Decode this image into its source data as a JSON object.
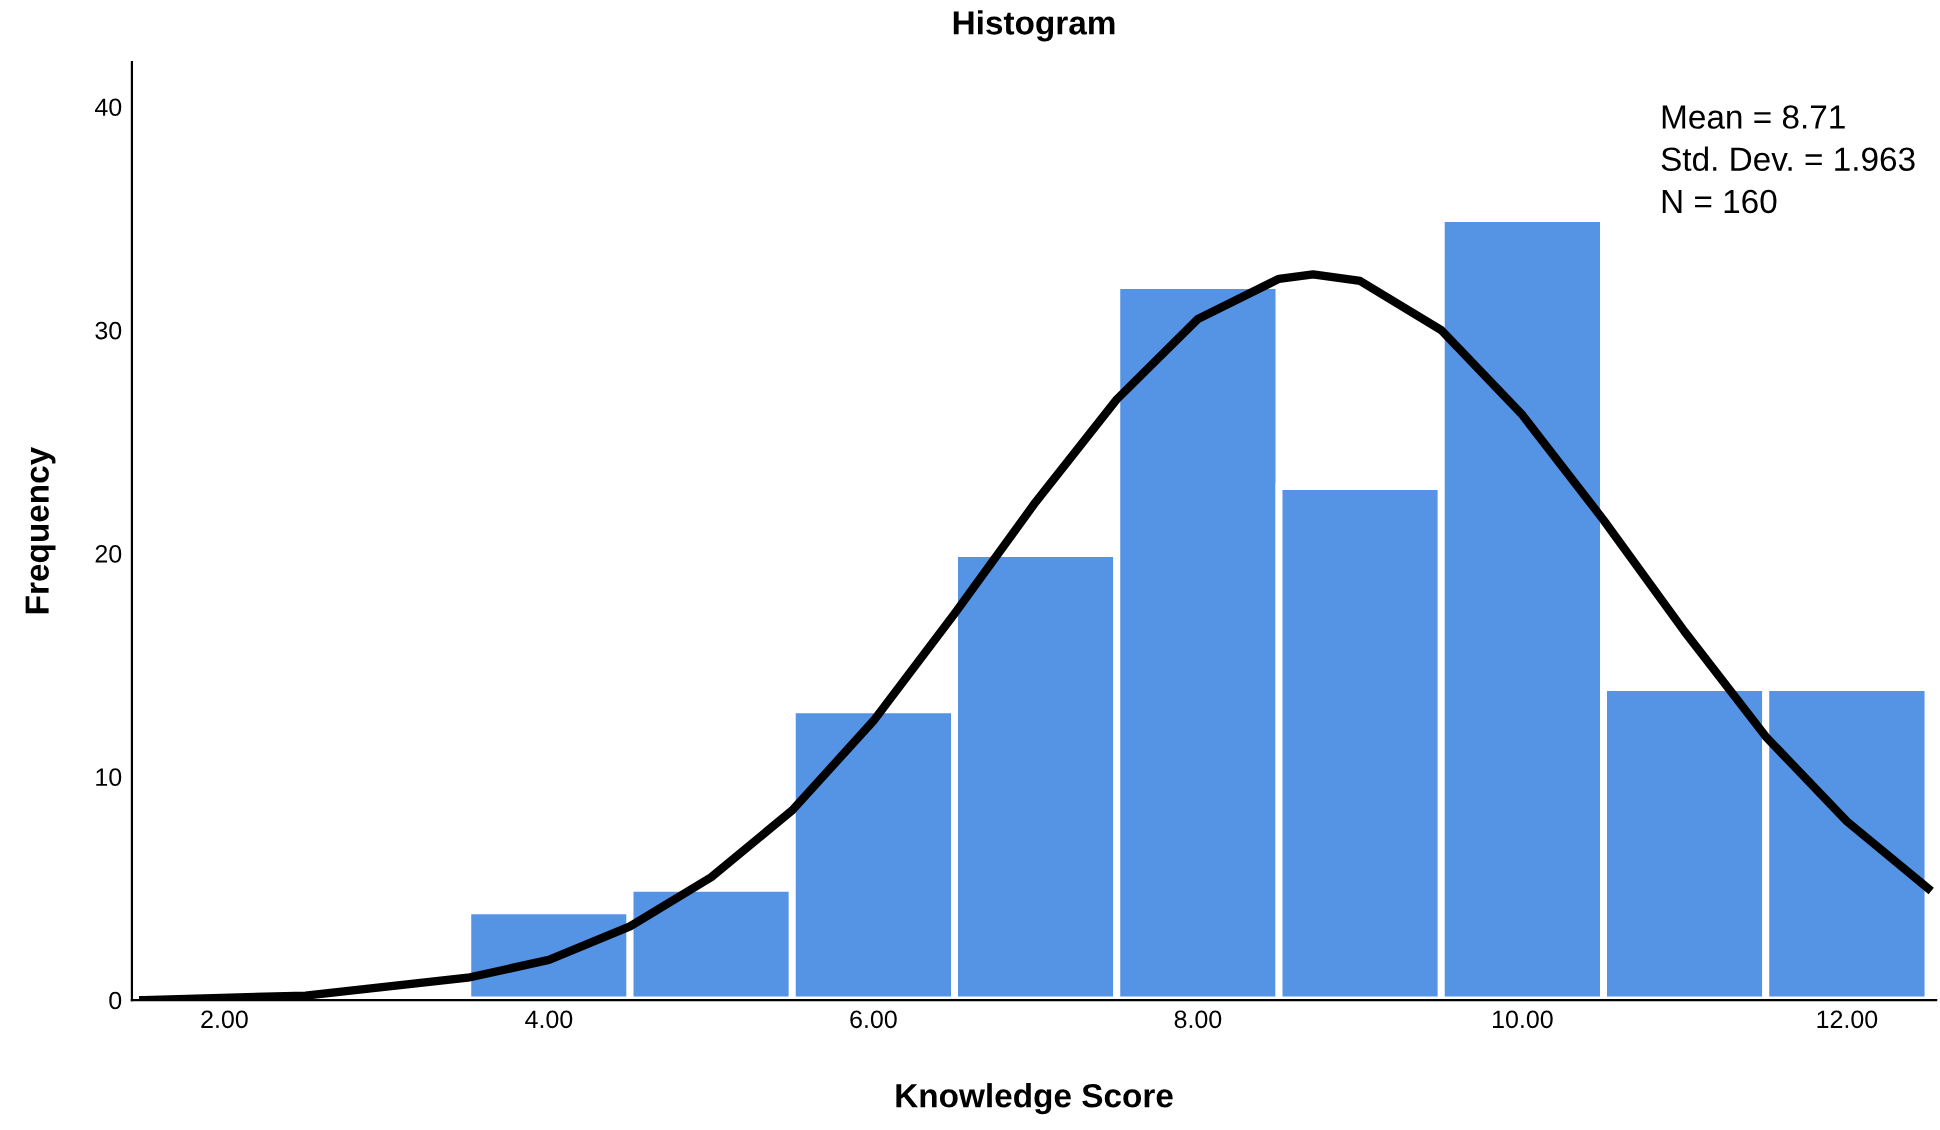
{
  "chart_data": {
    "type": "histogram",
    "title": "Histogram",
    "xlabel": "Knowledge Score",
    "ylabel": "Frequency",
    "bins": [
      3.5,
      4.5,
      5.5,
      6.5,
      7.5,
      8.5,
      9.5,
      10.5,
      11.5,
      12.5
    ],
    "values": [
      4,
      5,
      13,
      20,
      32,
      23,
      35,
      14,
      14
    ],
    "color": "#5594e4",
    "series": [
      {
        "type": "line",
        "color": "#000000",
        "x": [
          1.5,
          2.5,
          3.5,
          4,
          4.5,
          5,
          5.5,
          6,
          6.5,
          7,
          7.5,
          8,
          8.5,
          8.71,
          9,
          9.5,
          10,
          10.5,
          11,
          11.5,
          12,
          12.5
        ],
        "values": [
          0.0,
          0.2,
          1.0,
          1.8,
          3.3,
          5.5,
          8.5,
          12.5,
          17.3,
          22.3,
          26.9,
          30.5,
          32.3,
          32.5,
          32.2,
          30.0,
          26.2,
          21.5,
          16.5,
          11.8,
          8.0,
          5.0
        ]
      }
    ],
    "annotations": [
      "Mean = 8.71",
      "Std. Dev. = 1.963",
      "N = 160"
    ],
    "xlim": [
      1.43,
      12.55
    ],
    "xticks": [
      {
        "value": 2,
        "label": "2.00"
      },
      {
        "value": 4,
        "label": "4.00"
      },
      {
        "value": 6,
        "label": "6.00"
      },
      {
        "value": 8,
        "label": "8.00"
      },
      {
        "value": 10,
        "label": "10.00"
      },
      {
        "value": 12,
        "label": "12.00"
      }
    ],
    "ylim": [
      0,
      42
    ],
    "yticks": [
      0,
      10,
      20,
      30,
      40
    ],
    "grid": false,
    "legend": false
  }
}
